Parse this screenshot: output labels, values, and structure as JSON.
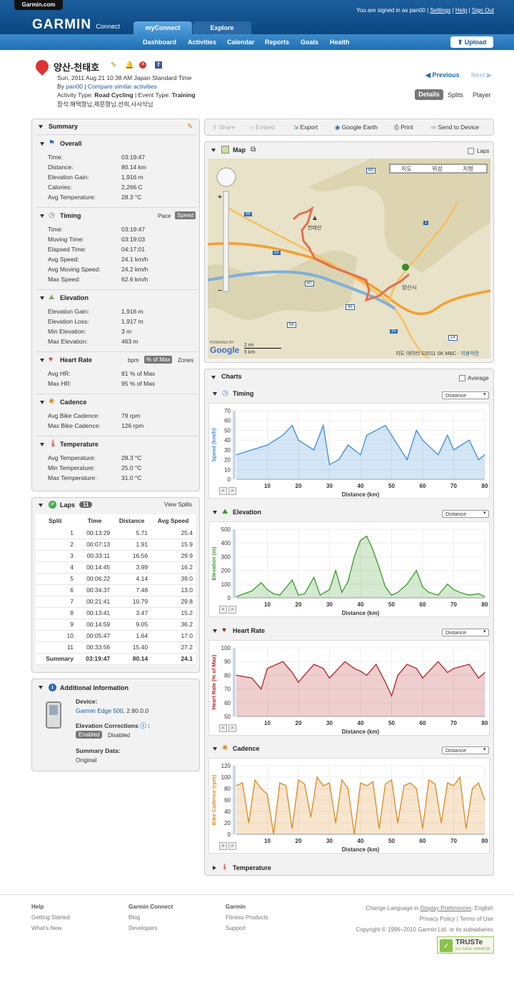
{
  "site": {
    "tab": "Garmin.com",
    "logo": "GARMIN",
    "logo_sub": "Connect",
    "signed_in_prefix": "You are signed in as",
    "user": "pan00",
    "settings": "Settings",
    "help": "Help",
    "signout": "Sign Out",
    "sep": "|"
  },
  "tabs": [
    "myConnect",
    "Explore"
  ],
  "nav": [
    "Dashboard",
    "Activities",
    "Calendar",
    "Reports",
    "Goals",
    "Health"
  ],
  "upload": "Upload",
  "activity": {
    "title": "양산-천태호",
    "date": "Sun, 2011 Aug 21 10:38 AM Japan Standard Time",
    "by": "By",
    "user": "pan00",
    "sep": "|",
    "compare": "Compare similar activities",
    "type_label": "Activity Type:",
    "type": "Road Cycling",
    "event_label": "| Event Type:",
    "event": "Training",
    "participants": "참석:해택형님,제문형님,선희,사사삭님",
    "prev": "Previous",
    "next": "Next",
    "views": [
      "Details",
      "Splits",
      "Player"
    ]
  },
  "summary": {
    "title": "Summary",
    "overall": {
      "title": "Overall",
      "rows": [
        [
          "Time:",
          "03:19:47"
        ],
        [
          "Distance:",
          "80.14 km"
        ],
        [
          "Elevation Gain:",
          "1,916 m"
        ],
        [
          "Calories:",
          "2,266 C"
        ],
        [
          "Avg Temperature:",
          "28.3 °C"
        ]
      ]
    },
    "timing": {
      "title": "Timing",
      "toggle": [
        "Pace",
        "Speed"
      ],
      "rows": [
        [
          "Time:",
          "03:19:47"
        ],
        [
          "Moving Time:",
          "03:19:03"
        ],
        [
          "Elapsed Time:",
          "04:17:01"
        ],
        [
          "Avg Speed:",
          "24.1 km/h"
        ],
        [
          "Avg Moving Speed:",
          "24.2 km/h"
        ],
        [
          "Max Speed:",
          "62.6 km/h"
        ]
      ]
    },
    "elevation": {
      "title": "Elevation",
      "rows": [
        [
          "Elevation Gain:",
          "1,916 m"
        ],
        [
          "Elevation Loss:",
          "1,917 m"
        ],
        [
          "Min Elevation:",
          "3 m"
        ],
        [
          "Max Elevation:",
          "463 m"
        ]
      ]
    },
    "heartrate": {
      "title": "Heart Rate",
      "toggle": [
        "bpm",
        "% of Max",
        "Zones"
      ],
      "rows": [
        [
          "Avg HR:",
          "81 % of Max"
        ],
        [
          "Max HR:",
          "95 % of Max"
        ]
      ]
    },
    "cadence": {
      "title": "Cadence",
      "rows": [
        [
          "Avg Bike Cadence:",
          "79 rpm"
        ],
        [
          "Max Bike Cadence:",
          "126 rpm"
        ]
      ]
    },
    "temperature": {
      "title": "Temperature",
      "rows": [
        [
          "Avg Temperature:",
          "28.3 °C"
        ],
        [
          "Min Temperature:",
          "25.0 °C"
        ],
        [
          "Max Temperature:",
          "31.0 °C"
        ]
      ]
    }
  },
  "laps": {
    "title": "Laps",
    "count": "11",
    "view": "View Splits",
    "headers": [
      "Split",
      "Time",
      "Distance",
      "Avg Speed"
    ],
    "rows": [
      [
        "1",
        "00:13:29",
        "5.71",
        "25.4"
      ],
      [
        "2",
        "00:07:13",
        "1.91",
        "15.9"
      ],
      [
        "3",
        "00:33:11",
        "16.56",
        "29.9"
      ],
      [
        "4",
        "00:14:45",
        "3.99",
        "16.2"
      ],
      [
        "5",
        "00:06:22",
        "4.14",
        "39.0"
      ],
      [
        "6",
        "00:34:37",
        "7.48",
        "13.0"
      ],
      [
        "7",
        "00:21:41",
        "10.79",
        "29.8"
      ],
      [
        "8",
        "00:13:41",
        "3.47",
        "15.2"
      ],
      [
        "9",
        "00:14:59",
        "9.05",
        "36.2"
      ],
      [
        "10",
        "00:05:47",
        "1.64",
        "17.0"
      ],
      [
        "11",
        "00:33:56",
        "15.40",
        "27.2"
      ]
    ],
    "summary_row": [
      "Summary",
      "03:19:47",
      "80.14",
      "24.1"
    ]
  },
  "additional": {
    "title": "Additional Information",
    "device_label": "Device:",
    "device": "Garmin Edge 500",
    "device_ver": ", 2.80.0.0",
    "elev_corr": "Elevation Corrections",
    "elev_suffix": ":",
    "enabled": "Enabled",
    "disabled": "Disabled",
    "sumdata_label": "Summary Data:",
    "sumdata": "Original"
  },
  "toolbar": [
    "Share",
    "Embed",
    "Export",
    "Google Earth",
    "Print",
    "Send to Device"
  ],
  "map": {
    "title": "Map",
    "laps": "Laps",
    "types": [
      "지도",
      "위성",
      "지형"
    ],
    "city": "양산시",
    "peak": "천태산",
    "copyright": "지도 데이터 ©2011 SK M&C -",
    "terms": "이용약관",
    "scale_mi": "2 mi",
    "scale_km": "5 km",
    "powered": "POWERED BY",
    "google": "Google",
    "routes": [
      "69",
      "1",
      "58",
      "55",
      "60",
      "35",
      "45",
      "56",
      "14"
    ]
  },
  "charts": {
    "title": "Charts",
    "average": "Average",
    "dropdown": "Distance",
    "xlabel": "Distance (km)",
    "sections": [
      "Timing",
      "Elevation",
      "Heart Rate",
      "Cadence",
      "Temperature"
    ]
  },
  "chart_data": [
    {
      "type": "area",
      "title": "Timing",
      "ylabel": "Speed (km/h)",
      "xlabel": "Distance (km)",
      "x": [
        0,
        5,
        10,
        15,
        18,
        20,
        25,
        28,
        30,
        33,
        36,
        40,
        42,
        45,
        48,
        50,
        55,
        58,
        60,
        65,
        68,
        70,
        75,
        78,
        80
      ],
      "values": [
        25,
        30,
        35,
        45,
        55,
        40,
        30,
        55,
        15,
        20,
        35,
        25,
        45,
        50,
        55,
        45,
        20,
        50,
        40,
        25,
        45,
        30,
        40,
        20,
        25
      ],
      "ylim": [
        0,
        70
      ],
      "yticks": [
        0,
        10,
        20,
        30,
        40,
        50,
        60,
        70
      ],
      "xticks": [
        10,
        20,
        30,
        40,
        50,
        60,
        70,
        80
      ],
      "xlim": [
        0,
        80
      ]
    },
    {
      "type": "area",
      "title": "Elevation",
      "ylabel": "Elevation (m)",
      "xlabel": "Distance (km)",
      "x": [
        0,
        5,
        8,
        10,
        12,
        14,
        18,
        20,
        22,
        25,
        27,
        30,
        32,
        34,
        36,
        38,
        40,
        42,
        44,
        46,
        48,
        50,
        52,
        55,
        58,
        60,
        62,
        65,
        68,
        70,
        72,
        75,
        78,
        80
      ],
      "values": [
        10,
        50,
        110,
        60,
        30,
        20,
        130,
        20,
        30,
        150,
        20,
        60,
        200,
        40,
        120,
        300,
        420,
        450,
        350,
        220,
        80,
        20,
        40,
        100,
        200,
        80,
        40,
        20,
        100,
        60,
        40,
        20,
        30,
        10
      ],
      "ylim": [
        0,
        500
      ],
      "yticks": [
        0,
        100,
        200,
        300,
        400,
        500
      ],
      "xticks": [
        10,
        20,
        30,
        40,
        50,
        60,
        70,
        80
      ],
      "xlim": [
        0,
        80
      ]
    },
    {
      "type": "area",
      "title": "Heart Rate",
      "ylabel": "Heart Rate (% of Max)",
      "xlabel": "Distance (km)",
      "x": [
        0,
        5,
        8,
        10,
        15,
        18,
        20,
        25,
        28,
        30,
        35,
        38,
        40,
        42,
        45,
        48,
        50,
        52,
        55,
        58,
        60,
        65,
        68,
        70,
        75,
        78,
        80
      ],
      "values": [
        80,
        78,
        70,
        85,
        90,
        82,
        75,
        88,
        85,
        78,
        90,
        85,
        83,
        80,
        88,
        75,
        65,
        80,
        88,
        85,
        78,
        90,
        82,
        85,
        88,
        78,
        82
      ],
      "ylim": [
        50,
        100
      ],
      "yticks": [
        50,
        60,
        70,
        80,
        90,
        100
      ],
      "xticks": [
        10,
        20,
        30,
        40,
        50,
        60,
        70,
        80
      ],
      "xlim": [
        0,
        80
      ]
    },
    {
      "type": "area",
      "title": "Cadence",
      "ylabel": "Bike Cadence (rpm)",
      "xlabel": "Distance (km)",
      "x": [
        0,
        2,
        4,
        6,
        8,
        10,
        12,
        14,
        16,
        18,
        20,
        22,
        24,
        26,
        28,
        30,
        32,
        34,
        36,
        38,
        40,
        42,
        44,
        46,
        48,
        50,
        52,
        54,
        56,
        58,
        60,
        62,
        64,
        66,
        68,
        70,
        72,
        74,
        76,
        78,
        80
      ],
      "values": [
        85,
        90,
        20,
        95,
        80,
        70,
        0,
        90,
        85,
        10,
        95,
        88,
        30,
        100,
        85,
        90,
        20,
        95,
        80,
        0,
        90,
        85,
        92,
        10,
        88,
        95,
        20,
        85,
        90,
        80,
        10,
        95,
        88,
        20,
        90,
        85,
        100,
        10,
        80,
        90,
        60
      ],
      "ylim": [
        0,
        120
      ],
      "yticks": [
        0,
        20,
        40,
        60,
        80,
        100,
        120
      ],
      "xticks": [
        10,
        20,
        30,
        40,
        50,
        60,
        70,
        80
      ],
      "xlim": [
        0,
        80
      ]
    }
  ],
  "footer": {
    "cols": [
      {
        "head": "Help",
        "items": [
          "Getting Started",
          "What's New"
        ]
      },
      {
        "head": "Garmin Connect",
        "items": [
          "Blog",
          "Developers"
        ]
      },
      {
        "head": "Garmin",
        "items": [
          "Fitness Products",
          "Support"
        ]
      }
    ],
    "lang_prefix": "Change Language in",
    "lang_link": "Display Preferences",
    "lang_suffix": ": English",
    "policy": "Privacy Policy | Terms of Use",
    "copyright": "Copyright © 1996–2010 Garmin Ltd. or its subsidiaries",
    "truste": "TRUSTe",
    "truste_sub": "EU SAFE HARBOR"
  },
  "colors": {
    "timing": "#3a8dd4",
    "elevation": "#3a9a2a",
    "heartrate": "#b22222",
    "cadence": "#d98a20",
    "brand": "#0d4a84"
  }
}
